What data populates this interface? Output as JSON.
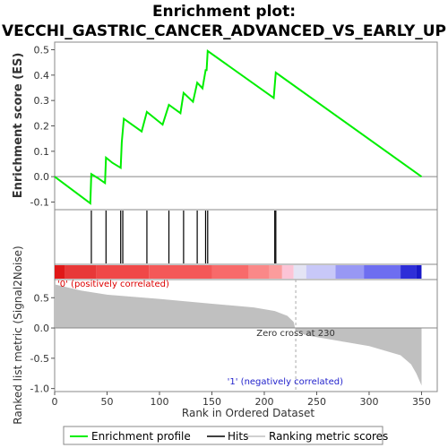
{
  "chart_data": {
    "type": "line",
    "title_line1": "Enrichment plot:",
    "title_line2": "VECCHI_GASTRIC_CANCER_ADVANCED_VS_EARLY_UP",
    "es_panel": {
      "ylabel": "Enrichment score (ES)",
      "ylim": [
        -0.13,
        0.53
      ],
      "yticks": [
        -0.1,
        0.0,
        0.1,
        0.2,
        0.3,
        0.4,
        0.5
      ],
      "ytick_labels": [
        "-0.1",
        "0.0",
        "0.1",
        "0.2",
        "0.3",
        "0.4",
        "0.5"
      ],
      "series_name": "Enrichment profile",
      "color": "#00ee00",
      "x": [
        0,
        34,
        35,
        41,
        48,
        49,
        55,
        63,
        64,
        65,
        66,
        83,
        88,
        103,
        109,
        120,
        123,
        132,
        136,
        141,
        144,
        145,
        146,
        209,
        211,
        350
      ],
      "y": [
        0.0,
        -0.105,
        0.01,
        -0.005,
        -0.025,
        0.075,
        0.055,
        0.035,
        0.135,
        0.18,
        0.228,
        0.178,
        0.255,
        0.205,
        0.283,
        0.25,
        0.33,
        0.295,
        0.37,
        0.348,
        0.42,
        0.42,
        0.495,
        0.31,
        0.41,
        0.0
      ]
    },
    "hits": {
      "series_name": "Hits",
      "positions": [
        35,
        49,
        63,
        65,
        88,
        109,
        123,
        136,
        144,
        146,
        210,
        211
      ]
    },
    "metric_panel": {
      "ylabel": "Ranked list metric (Signal2Noise)",
      "ylim": [
        -1.05,
        0.8
      ],
      "yticks": [
        -1.0,
        -0.5,
        0.0,
        0.5
      ],
      "ytick_labels": [
        "-1.0",
        "-0.5",
        "0.0",
        "0.5"
      ],
      "series_name": "Ranking metric scores",
      "profile_x": [
        0,
        10,
        25,
        50,
        100,
        150,
        190,
        210,
        222,
        228,
        230,
        240,
        300,
        330,
        340,
        345,
        350
      ],
      "profile_y": [
        0.72,
        0.68,
        0.62,
        0.55,
        0.48,
        0.4,
        0.34,
        0.28,
        0.2,
        0.1,
        -0.05,
        -0.12,
        -0.3,
        -0.45,
        -0.6,
        -0.75,
        -0.95
      ],
      "pos_label": "'0' (positively correlated)",
      "neg_label": "'1' (negatively correlated)",
      "zero_cross_label": "Zero cross at 230",
      "zero_cross": 230
    },
    "xlabel": "Rank in Ordered Dataset",
    "xlim": [
      0,
      365
    ],
    "xticks": [
      0,
      50,
      100,
      150,
      200,
      250,
      300,
      350
    ],
    "xtick_labels": [
      "0",
      "50",
      "100",
      "150",
      "200",
      "250",
      "300",
      "350"
    ],
    "heatmap_bar": {
      "segments": [
        {
          "start": 0,
          "end": 10,
          "color": "#e01818"
        },
        {
          "start": 10,
          "end": 40,
          "color": "#e83838"
        },
        {
          "start": 40,
          "end": 90,
          "color": "#f04848"
        },
        {
          "start": 90,
          "end": 150,
          "color": "#f45858"
        },
        {
          "start": 150,
          "end": 185,
          "color": "#f86a6a"
        },
        {
          "start": 185,
          "end": 205,
          "color": "#fa8888"
        },
        {
          "start": 205,
          "end": 217,
          "color": "#fc9c9c"
        },
        {
          "start": 217,
          "end": 228,
          "color": "#fcc4d6"
        },
        {
          "start": 228,
          "end": 240,
          "color": "#e4e4f4"
        },
        {
          "start": 240,
          "end": 268,
          "color": "#c8c8f8"
        },
        {
          "start": 268,
          "end": 295,
          "color": "#9898f4"
        },
        {
          "start": 295,
          "end": 330,
          "color": "#6e6ef0"
        },
        {
          "start": 330,
          "end": 345,
          "color": "#2e2ed8"
        },
        {
          "start": 345,
          "end": 350,
          "color": "#1818c8"
        }
      ]
    }
  },
  "legend": {
    "items": [
      {
        "label": "Enrichment profile",
        "color": "#00ee00"
      },
      {
        "label": "Hits",
        "color": "#000000"
      },
      {
        "label": "Ranking metric scores",
        "color": "#c0c0c0"
      }
    ]
  },
  "colors": {
    "pos_label": "#dd0000",
    "neg_label": "#2222cc",
    "zero_cross": "#333333",
    "bars": "#c0c0c0"
  }
}
